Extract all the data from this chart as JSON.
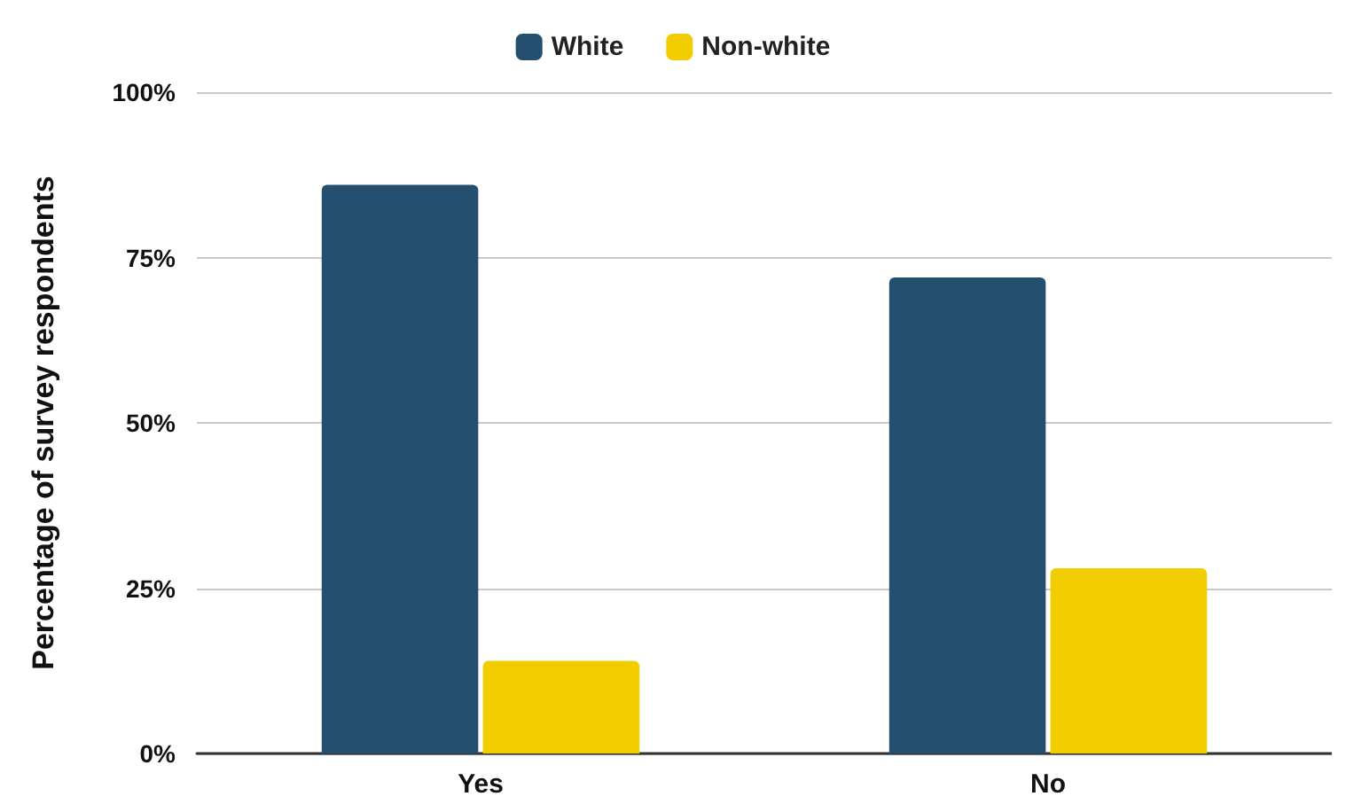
{
  "chart_data": {
    "type": "bar",
    "ylabel": "Percentage of survey respondents",
    "categories": [
      "Yes",
      "No"
    ],
    "series": [
      {
        "name": "White",
        "color": "#254f6f",
        "values": [
          86,
          72
        ]
      },
      {
        "name": "Non-white",
        "color": "#f1cd00",
        "values": [
          14,
          28
        ]
      }
    ],
    "ylim": [
      0,
      100
    ],
    "yticks": [
      {
        "value": 0,
        "label": "0%"
      },
      {
        "value": 25,
        "label": "25%"
      },
      {
        "value": 50,
        "label": "50%"
      },
      {
        "value": 75,
        "label": "75%"
      },
      {
        "value": 100,
        "label": "100%"
      }
    ],
    "grid": "y",
    "legend": "top"
  }
}
